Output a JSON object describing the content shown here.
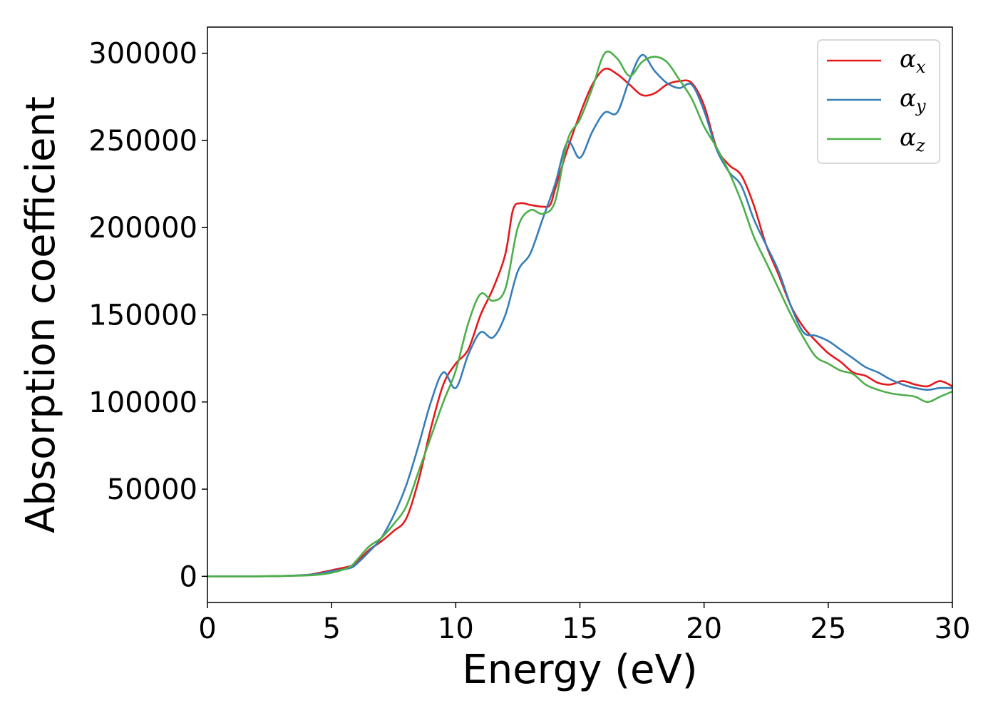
{
  "chart_data": {
    "type": "line",
    "xlabel": "Energy (eV)",
    "ylabel": "Absorption coefficient",
    "xlim": [
      0,
      30
    ],
    "ylim": [
      -15000,
      315000
    ],
    "xticks": [
      0,
      5,
      10,
      15,
      20,
      25,
      30
    ],
    "xtick_labels": [
      "0",
      "5",
      "10",
      "15",
      "20",
      "25",
      "30"
    ],
    "yticks": [
      0,
      50000,
      100000,
      150000,
      200000,
      250000,
      300000
    ],
    "ytick_labels": [
      "0",
      "50000",
      "100000",
      "150000",
      "200000",
      "250000",
      "300000"
    ],
    "grid": false,
    "legend_position": "top-right",
    "series": [
      {
        "name": "αx",
        "symbol": "α",
        "subscript": "x",
        "color": "#e41a1c",
        "x": [
          0,
          2,
          3,
          4,
          4.5,
          5,
          5.5,
          5.8,
          6,
          6.5,
          7,
          7.5,
          8,
          8.5,
          9,
          9.5,
          10,
          10.5,
          11,
          11.5,
          12,
          12.3,
          12.6,
          13,
          13.5,
          13.8,
          14,
          14.5,
          15,
          15.5,
          16,
          16.5,
          17,
          17.5,
          18,
          18.5,
          19,
          19.5,
          20,
          20.5,
          21,
          21.5,
          22,
          22.5,
          23,
          23.5,
          24,
          24.5,
          25,
          25.5,
          26,
          26.5,
          27,
          27.5,
          28,
          28.5,
          29,
          29.5,
          30
        ],
        "values": [
          0,
          0,
          200,
          800,
          2000,
          3500,
          5000,
          6000,
          8000,
          15000,
          20000,
          26000,
          33000,
          55000,
          85000,
          110000,
          122000,
          130000,
          150000,
          165000,
          185000,
          210000,
          214000,
          213000,
          212000,
          213000,
          222000,
          245000,
          265000,
          282000,
          291000,
          288000,
          282000,
          276000,
          277000,
          282000,
          284000,
          283000,
          270000,
          246000,
          236000,
          230000,
          213000,
          190000,
          173000,
          155000,
          143000,
          135000,
          128000,
          123000,
          117000,
          115000,
          111000,
          110000,
          112000,
          110000,
          109000,
          112000,
          109000
        ]
      },
      {
        "name": "αy",
        "symbol": "α",
        "subscript": "y",
        "color": "#377eb8",
        "x": [
          0,
          2,
          3,
          4,
          4.5,
          5,
          5.5,
          5.8,
          6,
          6.5,
          7,
          7.5,
          8,
          8.5,
          9,
          9.5,
          10,
          10.5,
          11,
          11.5,
          12,
          12.5,
          13,
          13.5,
          14,
          14.5,
          15,
          15.5,
          16,
          16.5,
          17,
          17.5,
          18,
          18.5,
          19,
          19.5,
          20,
          20.5,
          21,
          21.5,
          22,
          22.5,
          23,
          23.5,
          24,
          24.5,
          25,
          25.5,
          26,
          26.5,
          27,
          27.5,
          28,
          28.5,
          29,
          29.5,
          30
        ],
        "values": [
          0,
          0,
          200,
          800,
          1500,
          3000,
          4000,
          5000,
          7000,
          14000,
          22000,
          35000,
          52000,
          75000,
          100000,
          117000,
          108000,
          127000,
          140000,
          137000,
          150000,
          175000,
          185000,
          205000,
          225000,
          249000,
          240000,
          255000,
          266000,
          266000,
          285000,
          299000,
          290000,
          283000,
          280000,
          282000,
          267000,
          245000,
          232000,
          224000,
          205000,
          190000,
          175000,
          155000,
          140000,
          138000,
          135000,
          130000,
          125000,
          120000,
          117000,
          113000,
          110000,
          108000,
          107000,
          108000,
          108000
        ]
      },
      {
        "name": "αz",
        "symbol": "α",
        "subscript": "z",
        "color": "#4daf4a",
        "x": [
          0,
          2,
          3,
          4,
          4.5,
          5,
          5.5,
          5.8,
          6,
          6.5,
          7,
          7.5,
          8,
          8.5,
          9,
          9.5,
          10,
          10.5,
          11,
          11.5,
          12,
          12.5,
          13,
          13.5,
          14,
          14.5,
          15,
          15.5,
          16,
          16.5,
          17,
          17.5,
          18,
          18.5,
          19,
          19.5,
          20,
          20.5,
          21,
          21.5,
          22,
          22.5,
          23,
          23.5,
          24,
          24.5,
          25,
          25.5,
          26,
          26.5,
          27,
          27.5,
          28,
          28.5,
          29,
          29.5,
          30
        ],
        "values": [
          0,
          0,
          200,
          500,
          1000,
          2000,
          4000,
          6000,
          9000,
          17000,
          22000,
          30000,
          40000,
          60000,
          80000,
          100000,
          118000,
          145000,
          162000,
          158000,
          165000,
          200000,
          210000,
          208000,
          215000,
          250000,
          262000,
          280000,
          300000,
          297000,
          287000,
          295000,
          298000,
          295000,
          285000,
          274000,
          258000,
          246000,
          232000,
          215000,
          195000,
          180000,
          165000,
          150000,
          137000,
          126000,
          122000,
          118000,
          116000,
          110000,
          107000,
          105000,
          104000,
          103000,
          100000,
          103000,
          106000
        ]
      }
    ]
  }
}
